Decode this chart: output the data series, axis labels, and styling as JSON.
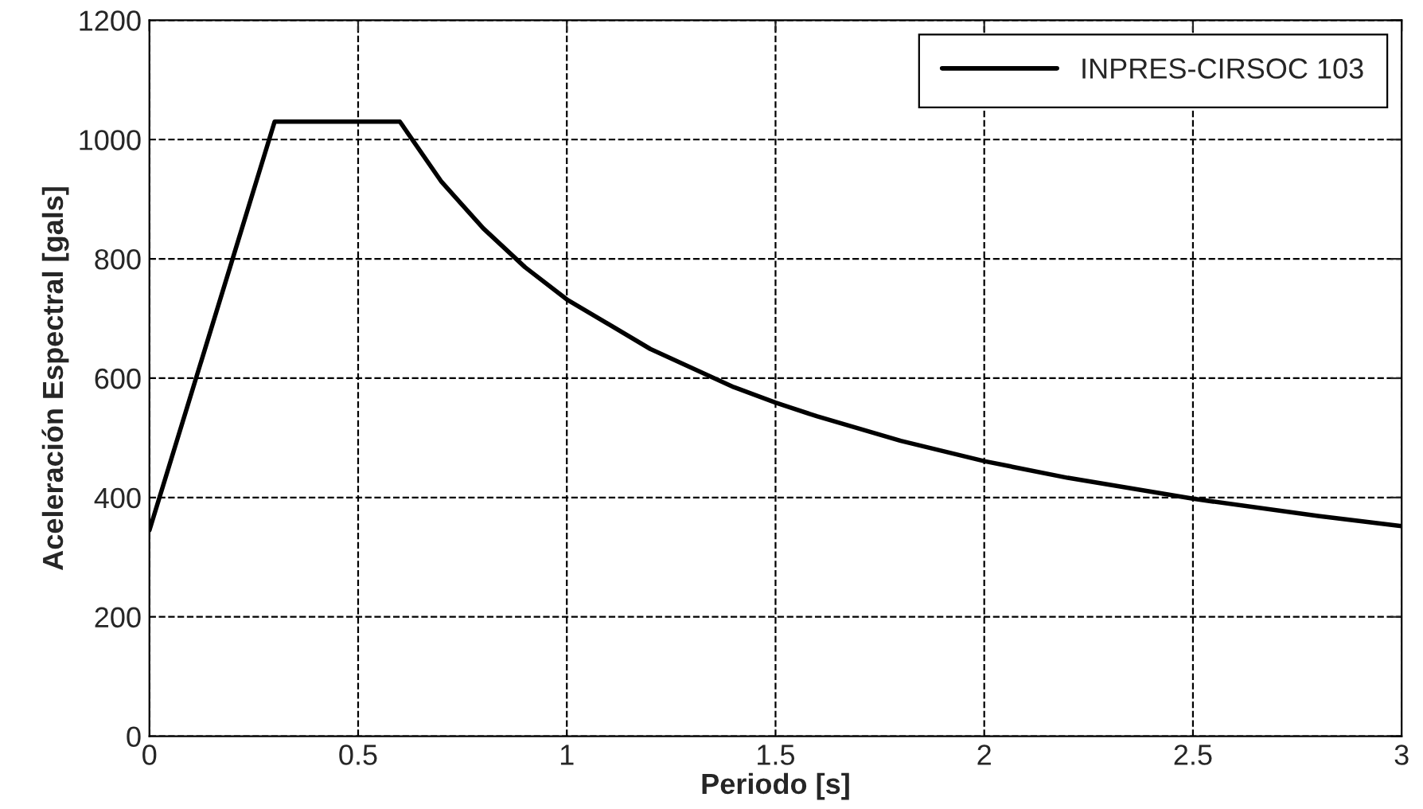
{
  "chart_data": {
    "type": "line",
    "xlabel": "Periodo [s]",
    "ylabel": "Aceleración Espectral [gals]",
    "series": [
      {
        "name": "INPRES-CIRSOC 103",
        "color": "#000000",
        "x": [
          0,
          0.3,
          0.6,
          0.7,
          0.8,
          0.9,
          1.0,
          1.2,
          1.4,
          1.5,
          1.6,
          1.8,
          2.0,
          2.2,
          2.5,
          2.8,
          3.0
        ],
        "values": [
          345,
          1030,
          1030,
          929,
          851,
          786,
          732,
          649,
          585,
          559,
          536,
          495,
          461,
          433,
          398,
          369,
          352
        ]
      }
    ],
    "xlim": [
      0,
      3
    ],
    "xticks": [
      0,
      0.5,
      1,
      1.5,
      2,
      2.5,
      3
    ],
    "ylim": [
      0,
      1200
    ],
    "yticks": [
      0,
      200,
      400,
      600,
      800,
      1000,
      1200
    ],
    "grid": true,
    "legend": "top right",
    "line_style": "solid",
    "marker": "none"
  }
}
